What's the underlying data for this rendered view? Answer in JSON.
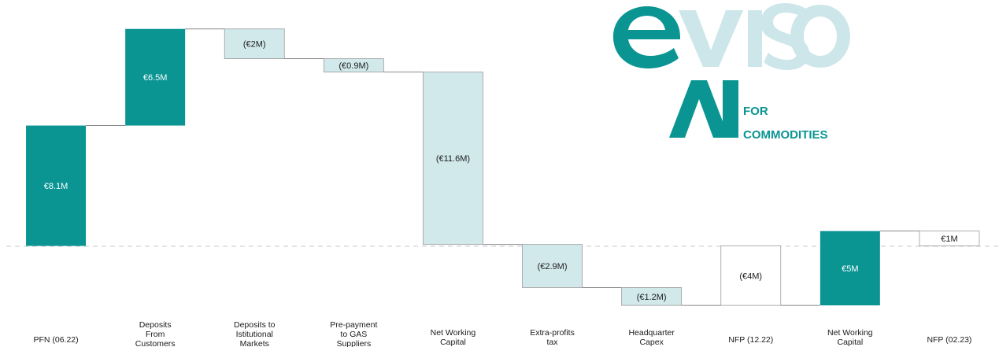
{
  "chart_data": {
    "type": "waterfall",
    "units": "€M",
    "categories": [
      "PFN (06.22)",
      "Deposits\nFrom\nCustomers",
      "Deposits to\nIstitutional\nMarkets",
      "Pre-payment\nto GAS\nSuppliers",
      "Net Working\nCapital",
      "Extra-profits\ntax",
      "Headquarter\nCapex",
      "NFP (12.22)",
      "Net Working\nCapital",
      "NFP (02.23)"
    ],
    "values": [
      8.1,
      6.5,
      -2,
      -0.9,
      -11.6,
      -2.9,
      -1.2,
      -4,
      5,
      1
    ],
    "labels": [
      "€8.1M",
      "€6.5M",
      "(€2M)",
      "(€0.9M)",
      "(€11.6M)",
      "(€2.9M)",
      "(€1.2M)",
      "(€4M)",
      "€5M",
      "€1M"
    ],
    "kinds": [
      "total",
      "increase",
      "decrease",
      "decrease",
      "decrease",
      "decrease",
      "decrease",
      "total",
      "increase",
      "total"
    ],
    "baseline": 0,
    "ylim": [
      -4.1,
      14.8
    ],
    "colors": {
      "increase": "#0a9593",
      "decrease": "#d2e9ec",
      "total_positive": "#0a9593",
      "total_negative": "#ffffff",
      "total_small": "#ffffff",
      "outline": "#9a9a9a",
      "connector": "#8a8a8a",
      "zero_line": "#c8c8c8"
    }
  },
  "logo": {
    "brand": "eviso",
    "line1": "FOR",
    "line2": "COMMODITIES",
    "color_dark": "#0a9593",
    "color_light": "#cde6ea"
  }
}
